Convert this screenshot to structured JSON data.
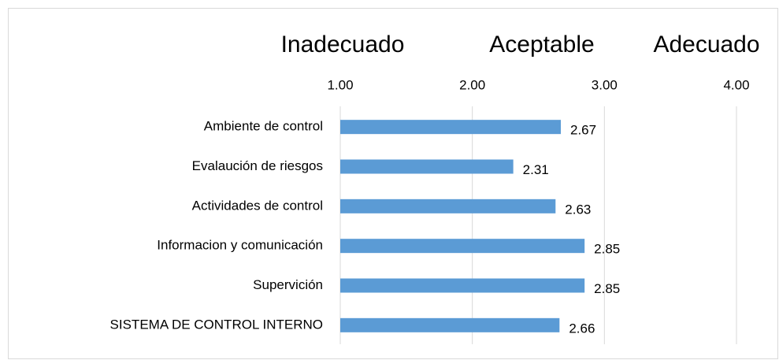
{
  "chart_data": {
    "type": "bar",
    "orientation": "horizontal",
    "annotations": [
      "Inadecuado",
      "Aceptable",
      "Adecuado"
    ],
    "categories": [
      "Ambiente de control",
      "Evalaución de riesgos",
      "Actividades de control",
      "Informacion y comunicación",
      "Supervición",
      "SISTEMA DE CONTROL INTERNO"
    ],
    "values": [
      2.67,
      2.31,
      2.63,
      2.85,
      2.85,
      2.66
    ],
    "color": "#5b9bd5",
    "xlim": [
      1,
      4
    ],
    "xticks": [
      {
        "value": 1,
        "label": "1.00"
      },
      {
        "value": 2,
        "label": "2.00"
      },
      {
        "value": 3,
        "label": "3.00"
      },
      {
        "value": 4,
        "label": "4.00"
      }
    ],
    "grid": true
  }
}
